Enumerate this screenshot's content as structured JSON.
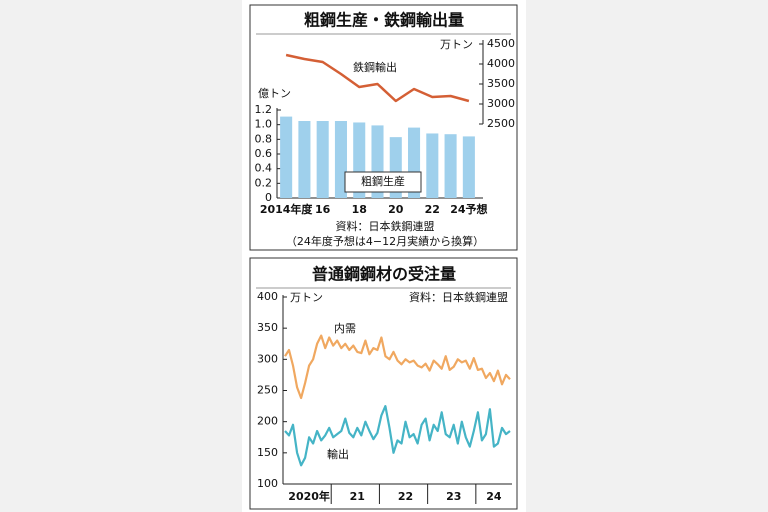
{
  "chart_data": [
    {
      "type": "bar",
      "title": "粗鋼生産・鉄鋼輸出量",
      "categories": [
        "2014年度",
        null,
        "16",
        null,
        "18",
        null,
        "20",
        null,
        "22",
        null,
        "24予想"
      ],
      "series": [
        {
          "name": "粗鋼生産",
          "type": "bar",
          "color": "#9fd0ec",
          "values": [
            1.11,
            1.05,
            1.05,
            1.05,
            1.03,
            0.99,
            0.83,
            0.96,
            0.88,
            0.87,
            0.84
          ]
        },
        {
          "name": "鉄鋼輸出",
          "type": "line",
          "axis": "y2",
          "color": "#d45f35",
          "values": [
            4225,
            4125,
            4050,
            3750,
            3425,
            3500,
            3075,
            3375,
            3175,
            3200,
            3075
          ]
        }
      ],
      "ylim": [
        0,
        1.2
      ],
      "yticks": [
        0,
        0.2,
        0.4,
        0.6,
        0.8,
        {
          "value": 1,
          "label": "1.0"
        },
        1.2
      ],
      "y2lim": [
        2500,
        4500
      ],
      "y2ticks": [
        2500,
        3000,
        3500,
        4000,
        4500
      ],
      "y_label": "億トン",
      "y2_label": "万トン",
      "source": "資料：日本鉄鋼連盟",
      "note": "（24年度予想は4−12月実績から換算）"
    },
    {
      "type": "line",
      "title": "普通鋼鋼材の受注量",
      "categories": [
        null,
        null,
        null,
        null,
        null,
        null,
        "2020年",
        null,
        null,
        null,
        null,
        null,
        null,
        null,
        null,
        null,
        null,
        null,
        "21",
        null,
        null,
        null,
        null,
        null,
        null,
        null,
        null,
        null,
        null,
        null,
        "22",
        null,
        null,
        null,
        null,
        null,
        null,
        null,
        null,
        null,
        null,
        null,
        "23",
        null,
        null,
        null,
        null,
        null,
        null,
        null,
        null,
        null,
        "24",
        null,
        null,
        null,
        null
      ],
      "series": [
        {
          "name": "内需",
          "color": "#f0a860",
          "values": [
            305,
            315,
            290,
            255,
            238,
            262,
            290,
            300,
            325,
            338,
            318,
            335,
            322,
            330,
            318,
            325,
            315,
            322,
            312,
            310,
            330,
            308,
            318,
            315,
            335,
            305,
            300,
            312,
            298,
            292,
            300,
            295,
            298,
            290,
            287,
            293,
            282,
            298,
            292,
            285,
            305,
            283,
            288,
            300,
            295,
            298,
            285,
            302,
            283,
            285,
            270,
            278,
            265,
            282,
            260,
            275,
            268
          ]
        },
        {
          "name": "輸出",
          "color": "#45b4c6",
          "values": [
            185,
            178,
            195,
            150,
            130,
            142,
            175,
            165,
            185,
            170,
            178,
            190,
            175,
            180,
            185,
            205,
            182,
            175,
            190,
            178,
            200,
            185,
            172,
            182,
            210,
            225,
            190,
            150,
            170,
            165,
            200,
            175,
            180,
            165,
            195,
            205,
            170,
            195,
            185,
            215,
            180,
            175,
            195,
            165,
            200,
            175,
            160,
            185,
            215,
            170,
            180,
            220,
            160,
            165,
            190,
            180,
            185
          ]
        }
      ],
      "ylim": [
        100,
        400
      ],
      "yticks": [
        100,
        150,
        200,
        250,
        300,
        350,
        400
      ],
      "y_label": "万トン",
      "source": "資料：日本鉄鋼連盟"
    }
  ]
}
